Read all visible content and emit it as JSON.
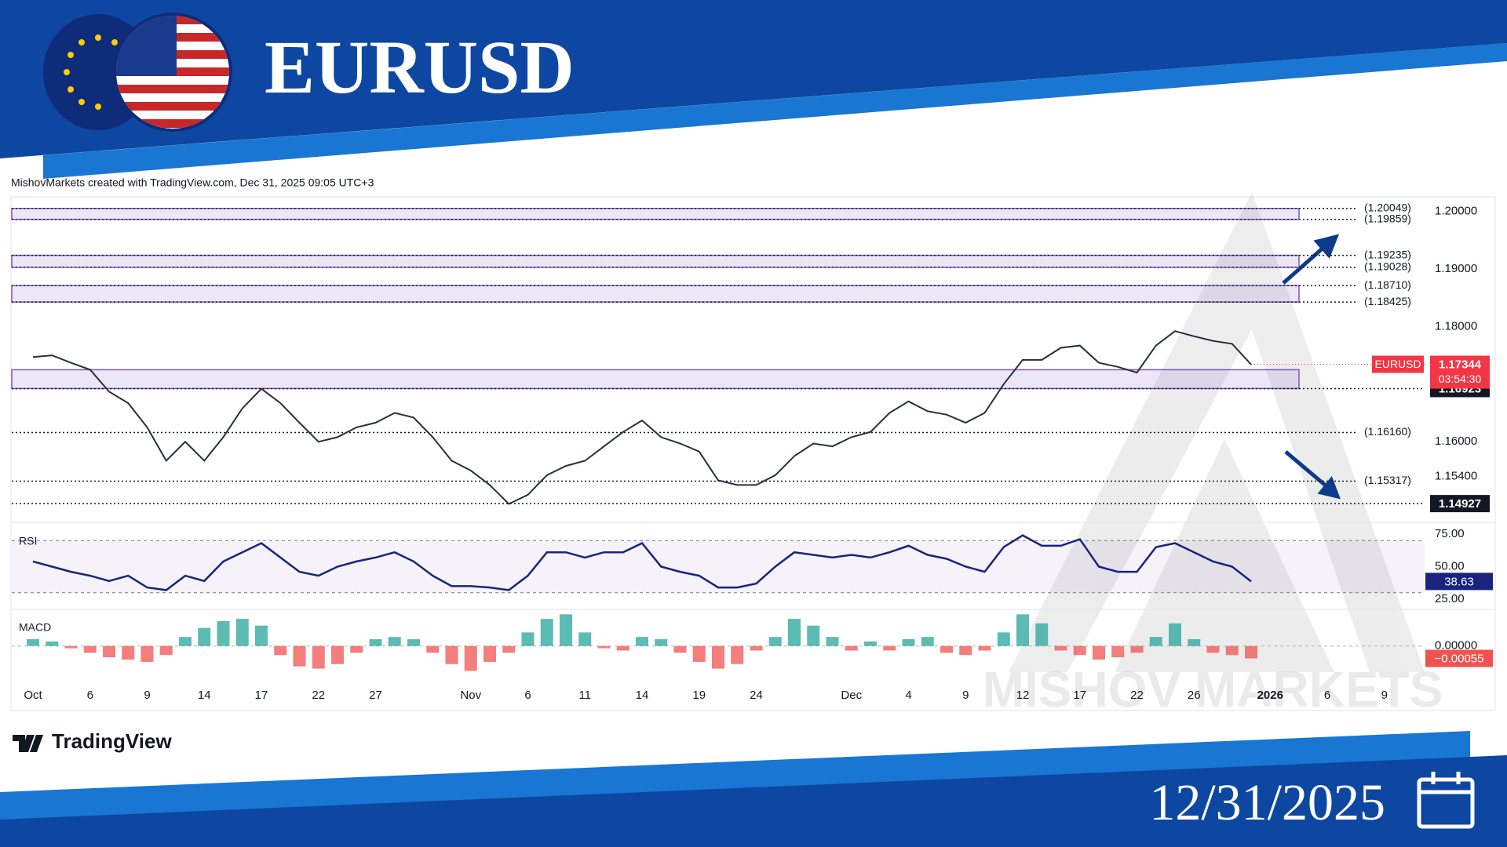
{
  "header": {
    "title": "EURUSD",
    "attribution": "MishovMarkets created with TradingView.com, Dec 31, 2025 09:05 UTC+3",
    "logo": "TradingView",
    "date": "12/31/2025",
    "watermark": "MISHOV MARKETS"
  },
  "chart_data": [
    {
      "type": "line",
      "x": [
        "2025-10-01",
        "2025-10-02",
        "2025-10-03",
        "2025-10-06",
        "2025-10-07",
        "2025-10-08",
        "2025-10-09",
        "2025-10-10",
        "2025-10-13",
        "2025-10-14",
        "2025-10-15",
        "2025-10-16",
        "2025-10-17",
        "2025-10-20",
        "2025-10-21",
        "2025-10-22",
        "2025-10-23",
        "2025-10-24",
        "2025-10-27",
        "2025-10-28",
        "2025-10-29",
        "2025-10-30",
        "2025-10-31",
        "2025-11-03",
        "2025-11-04",
        "2025-11-05",
        "2025-11-06",
        "2025-11-07",
        "2025-11-10",
        "2025-11-11",
        "2025-11-12",
        "2025-11-13",
        "2025-11-14",
        "2025-11-17",
        "2025-11-18",
        "2025-11-19",
        "2025-11-20",
        "2025-11-21",
        "2025-11-24",
        "2025-11-25",
        "2025-11-26",
        "2025-11-27",
        "2025-11-28",
        "2025-12-01",
        "2025-12-02",
        "2025-12-03",
        "2025-12-04",
        "2025-12-05",
        "2025-12-08",
        "2025-12-09",
        "2025-12-10",
        "2025-12-11",
        "2025-12-12",
        "2025-12-15",
        "2025-12-16",
        "2025-12-17",
        "2025-12-18",
        "2025-12-19",
        "2025-12-22",
        "2025-12-23",
        "2025-12-24",
        "2025-12-26",
        "2025-12-29",
        "2025-12-30",
        "2025-12-31"
      ],
      "series": [
        {
          "name": "EURUSD",
          "color": "#2a2e39",
          "values": [
            1.1747,
            1.175,
            1.1737,
            1.1725,
            1.1687,
            1.1667,
            1.1625,
            1.1567,
            1.16,
            1.1567,
            1.1608,
            1.1658,
            1.1692,
            1.1667,
            1.1633,
            1.16,
            1.1608,
            1.1625,
            1.1633,
            1.165,
            1.1642,
            1.1608,
            1.1567,
            1.155,
            1.1525,
            1.1492,
            1.1508,
            1.1542,
            1.1558,
            1.1567,
            1.1592,
            1.1617,
            1.1637,
            1.1608,
            1.1597,
            1.1583,
            1.1533,
            1.1525,
            1.1525,
            1.1542,
            1.1575,
            1.1597,
            1.1592,
            1.1608,
            1.1617,
            1.165,
            1.167,
            1.1653,
            1.1647,
            1.1633,
            1.165,
            1.17,
            1.1742,
            1.1742,
            1.1763,
            1.1767,
            1.1737,
            1.173,
            1.172,
            1.1767,
            1.1792,
            1.1783,
            1.1775,
            1.177,
            1.1734
          ]
        }
      ],
      "last_price": 1.17344,
      "last_color": "#f23645",
      "countdown": "03:54:30",
      "ylim": [
        1.1467,
        1.2025
      ],
      "yticks": [
        {
          "value": 1.2,
          "label": "1.20000"
        },
        {
          "value": 1.19,
          "label": "1.19000"
        },
        {
          "value": 1.18,
          "label": "1.18000"
        },
        {
          "value": 1.16,
          "label": "1.16000"
        },
        {
          "value": 1.154,
          "label": "1.15400"
        }
      ],
      "xticks": [
        {
          "value": "2025-10-01",
          "label": "Oct"
        },
        {
          "value": "2025-10-06",
          "label": "6"
        },
        {
          "value": "2025-10-09",
          "label": "9"
        },
        {
          "value": "2025-10-14",
          "label": "14"
        },
        {
          "value": "2025-10-17",
          "label": "17"
        },
        {
          "value": "2025-10-22",
          "label": "22"
        },
        {
          "value": "2025-10-27",
          "label": "27"
        },
        {
          "value": "2025-11-03",
          "label": "Nov"
        },
        {
          "value": "2025-11-06",
          "label": "6"
        },
        {
          "value": "2025-11-11",
          "label": "11"
        },
        {
          "value": "2025-11-14",
          "label": "14"
        },
        {
          "value": "2025-11-19",
          "label": "19"
        },
        {
          "value": "2025-11-24",
          "label": "24"
        },
        {
          "value": "2025-12-01",
          "label": "Dec"
        },
        {
          "value": "2025-12-04",
          "label": "4"
        },
        {
          "value": "2025-12-09",
          "label": "9"
        },
        {
          "value": "2025-12-12",
          "label": "12"
        },
        {
          "value": "2025-12-17",
          "label": "17"
        },
        {
          "value": "2025-12-22",
          "label": "22"
        },
        {
          "value": "2025-12-26",
          "label": "26"
        },
        {
          "value": "2026-01-01",
          "label": "2026"
        },
        {
          "value": "2026-01-06",
          "label": "6"
        },
        {
          "value": "2026-01-09",
          "label": "9"
        }
      ],
      "levels": [
        {
          "value": 1.20049,
          "label": "(1.20049)"
        },
        {
          "value": 1.19859,
          "label": "(1.19859)"
        },
        {
          "value": 1.19235,
          "label": "(1.19235)"
        },
        {
          "value": 1.19028,
          "label": "(1.19028)"
        },
        {
          "value": 1.1871,
          "label": "(1.18710)"
        },
        {
          "value": 1.18425,
          "label": "(1.18425)"
        },
        {
          "value": 1.1616,
          "label": "(1.16160)"
        },
        {
          "value": 1.15317,
          "label": "(1.15317)"
        }
      ],
      "marked_levels": [
        1.16923,
        1.14927
      ],
      "zones": [
        [
          1.19859,
          1.20049
        ],
        [
          1.19028,
          1.19235
        ],
        [
          1.18425,
          1.1871
        ],
        [
          1.16923,
          1.1725
        ]
      ],
      "zone_color": "#7e57c2"
    },
    {
      "type": "line",
      "title": "RSI",
      "color": "#1a237e",
      "values": [
        54,
        50,
        46,
        43,
        39,
        43,
        34,
        32,
        43,
        39,
        54,
        61,
        68,
        57,
        46,
        43,
        50,
        54,
        57,
        61,
        54,
        43,
        35,
        35,
        34,
        32,
        43,
        61,
        61,
        57,
        61,
        61,
        68,
        50,
        46,
        43,
        34,
        34,
        37,
        50,
        61,
        59,
        57,
        59,
        57,
        61,
        66,
        59,
        56,
        50,
        46,
        65,
        74,
        66,
        66,
        71,
        50,
        46,
        46,
        65,
        68,
        61,
        54,
        50,
        38.63
      ],
      "last_value": 38.63,
      "band": [
        30,
        70
      ],
      "ylim": [
        19,
        81
      ],
      "yticks": [
        {
          "value": 75,
          "label": "75.00"
        },
        {
          "value": 50,
          "label": "50.00"
        },
        {
          "value": 25,
          "label": "25.00"
        }
      ]
    },
    {
      "type": "bar",
      "title": "MACD",
      "up_color": "#26a69a",
      "down_color": "#ef5350",
      "values": [
        0.0003,
        0.0002,
        -0.0001,
        -0.0003,
        -0.0005,
        -0.0006,
        -0.0007,
        -0.0004,
        0.0004,
        0.0008,
        0.0011,
        0.0012,
        0.0009,
        -0.0004,
        -0.0009,
        -0.001,
        -0.0008,
        -0.0003,
        0.0003,
        0.0004,
        0.0003,
        -0.0003,
        -0.0008,
        -0.0011,
        -0.0007,
        -0.0003,
        0.0006,
        0.0012,
        0.0014,
        0.0006,
        -0.0001,
        -0.0002,
        0.0004,
        0.0003,
        -0.0003,
        -0.0007,
        -0.001,
        -0.0008,
        -0.0002,
        0.0004,
        0.0012,
        0.0009,
        0.0004,
        -0.0002,
        0.0002,
        -0.0002,
        0.0003,
        0.0004,
        -0.0003,
        -0.0004,
        -0.0002,
        0.0006,
        0.0014,
        0.001,
        -0.0002,
        -0.0004,
        -0.0006,
        -0.0005,
        -0.0003,
        0.0004,
        0.001,
        0.0003,
        -0.0003,
        -0.0004,
        -0.00055
      ],
      "last_value": {
        "value": -0.00055,
        "label": "−0.00055"
      },
      "ylim": [
        -0.00157,
        0.00148
      ],
      "yticks": [
        {
          "value": 0,
          "label": "0.00000"
        }
      ]
    }
  ]
}
